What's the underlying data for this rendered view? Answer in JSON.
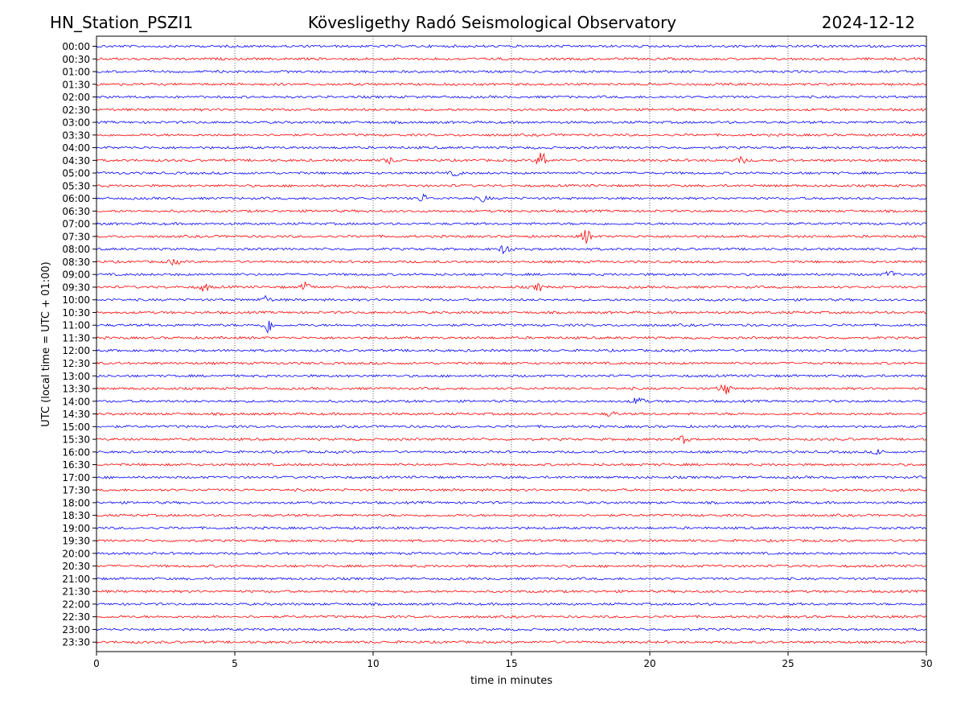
{
  "header": {
    "station": "HN_Station_PSZI1",
    "observatory": "Kövesligethy Radó Seismological Observatory",
    "date": "2024-12-12"
  },
  "colors": {
    "trace_a": "#0000ff",
    "trace_b": "#ff0000",
    "grid": "#000000",
    "frame": "#000000"
  },
  "chart_data": {
    "type": "line",
    "title": "Kövesligethy Radó Seismological Observatory",
    "xlabel": "time in minutes",
    "ylabel": "UTC (local time = UTC + 01:00)",
    "xlim": [
      0,
      30
    ],
    "x_ticks": [
      0,
      5,
      10,
      15,
      20,
      25,
      30
    ],
    "x_tick_labels": [
      "0",
      "5",
      "10",
      "15",
      "20",
      "25",
      "30"
    ],
    "grid": "vertical dotted",
    "rows": [
      "00:00",
      "00:30",
      "01:00",
      "01:30",
      "02:00",
      "02:30",
      "03:00",
      "03:30",
      "04:00",
      "04:30",
      "05:00",
      "05:30",
      "06:00",
      "06:30",
      "07:00",
      "07:30",
      "08:00",
      "08:30",
      "09:00",
      "09:30",
      "10:00",
      "10:30",
      "11:00",
      "11:30",
      "12:00",
      "12:30",
      "13:00",
      "13:30",
      "14:00",
      "14:30",
      "15:00",
      "15:30",
      "16:00",
      "16:30",
      "17:00",
      "17:30",
      "18:00",
      "18:30",
      "19:00",
      "19:30",
      "20:00",
      "20:30",
      "21:00",
      "21:30",
      "22:00",
      "22:30",
      "23:00",
      "23:30"
    ],
    "row_colors": "alternating blue / red",
    "events": [
      {
        "row": "04:30",
        "minute": 16.1,
        "amplitude": 2.6
      },
      {
        "row": "04:30",
        "minute": 10.6,
        "amplitude": 0.8
      },
      {
        "row": "04:30",
        "minute": 23.3,
        "amplitude": 0.9
      },
      {
        "row": "05:00",
        "minute": 13.0,
        "amplitude": 0.8
      },
      {
        "row": "06:00",
        "minute": 11.8,
        "amplitude": 1.2
      },
      {
        "row": "06:00",
        "minute": 14.0,
        "amplitude": 0.9
      },
      {
        "row": "07:30",
        "minute": 17.7,
        "amplitude": 2.0
      },
      {
        "row": "08:00",
        "minute": 14.8,
        "amplitude": 1.8
      },
      {
        "row": "08:30",
        "minute": 2.8,
        "amplitude": 0.9
      },
      {
        "row": "09:00",
        "minute": 28.7,
        "amplitude": 1.0
      },
      {
        "row": "09:30",
        "minute": 3.9,
        "amplitude": 1.2
      },
      {
        "row": "09:30",
        "minute": 7.6,
        "amplitude": 1.5
      },
      {
        "row": "09:30",
        "minute": 16.0,
        "amplitude": 1.0
      },
      {
        "row": "10:00",
        "minute": 6.1,
        "amplitude": 1.1
      },
      {
        "row": "11:00",
        "minute": 6.2,
        "amplitude": 2.2
      },
      {
        "row": "13:30",
        "minute": 22.7,
        "amplitude": 2.2
      },
      {
        "row": "14:00",
        "minute": 19.6,
        "amplitude": 1.5
      },
      {
        "row": "14:30",
        "minute": 18.6,
        "amplitude": 0.7
      },
      {
        "row": "15:30",
        "minute": 21.2,
        "amplitude": 1.1
      },
      {
        "row": "16:00",
        "minute": 28.3,
        "amplitude": 0.9
      }
    ]
  }
}
